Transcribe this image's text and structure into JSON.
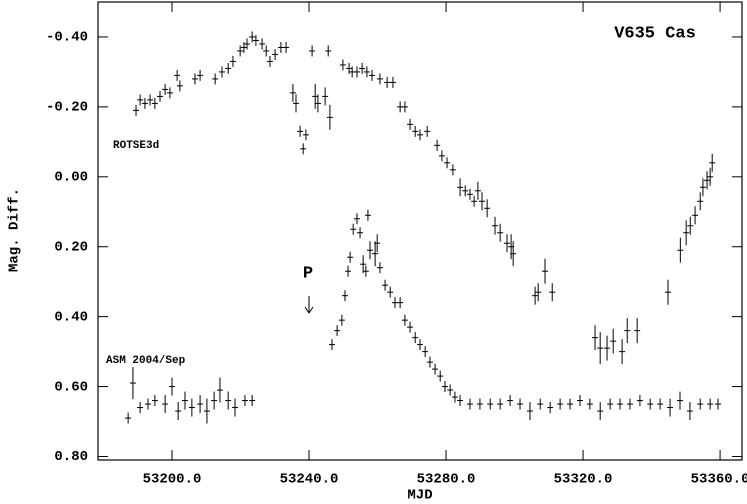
{
  "chart_data": {
    "type": "scatter",
    "title": "V635 Cas",
    "xlabel": "MJD",
    "ylabel": "Mag. Diff.",
    "annotation": "P",
    "xlim": [
      53178.4,
      53366.4
    ],
    "ylim": [
      -0.5,
      0.81
    ],
    "y_inverted": true,
    "xticks": [
      {
        "value": 53200,
        "label": "53200.0"
      },
      {
        "value": 53240,
        "label": "53240.0"
      },
      {
        "value": 53280,
        "label": "53280.0"
      },
      {
        "value": 53320,
        "label": "53320.0"
      },
      {
        "value": 53360,
        "label": "53360.0"
      }
    ],
    "yticks": [
      {
        "value": -0.4,
        "label": "-0.40"
      },
      {
        "value": -0.2,
        "label": "-0.20"
      },
      {
        "value": 0,
        "label": "0.00"
      },
      {
        "value": 0.2,
        "label": "0.20"
      },
      {
        "value": 0.4,
        "label": "0.40"
      },
      {
        "value": 0.6,
        "label": "0.60"
      },
      {
        "value": 0.8,
        "label": "0.80"
      }
    ],
    "grid": false,
    "series": [
      {
        "name": "ROTSE3d",
        "color": "#000000",
        "x": [
          53189.5,
          53190.7,
          53192.1,
          53193.6,
          53195.0,
          53196.5,
          53198.0,
          53199.4,
          53201.5,
          53202.3,
          53206.7,
          53208.2,
          53212.6,
          53214.6,
          53216.4,
          53217.8,
          53219.9,
          53221.0,
          53221.9,
          53223.4,
          53224.5,
          53226.3,
          53227.5,
          53228.6,
          53230.1,
          53231.8,
          53233.3,
          53235.3,
          53236.2,
          53237.4,
          53238.3,
          53239.1,
          53240.9,
          53241.8,
          53242.6,
          53244.7,
          53245.6,
          53246.1,
          53249.9,
          53251.7,
          53252.6,
          53254.0,
          53255.5,
          53256.9,
          53258.4,
          53260.7,
          53262.8,
          53264.5,
          53266.6,
          53268.0,
          53269.5,
          53271.0,
          53272.4,
          53274.5,
          53277.4,
          53278.8,
          53280.3,
          53282.0,
          53284.1,
          53285.6,
          53287.0,
          53288.2,
          53289.3,
          53290.5,
          53292.0,
          53294.3,
          53295.8,
          53297.8,
          53299.0,
          53299.6,
          53306.0,
          53306.9,
          53308.9,
          53311.0,
          53323.5,
          53325.0,
          53327.0,
          53328.8,
          53331.4,
          53332.9,
          53335.8,
          53344.8,
          53348.4,
          53350.1,
          53351.3,
          53352.7,
          53354.2,
          53355.0,
          53356.2,
          53357.1,
          53357.7
        ],
        "values": [
          -0.19,
          -0.22,
          -0.21,
          -0.22,
          -0.21,
          -0.23,
          -0.25,
          -0.24,
          -0.29,
          -0.26,
          -0.28,
          -0.29,
          -0.28,
          -0.3,
          -0.31,
          -0.33,
          -0.36,
          -0.37,
          -0.38,
          -0.4,
          -0.39,
          -0.38,
          -0.36,
          -0.33,
          -0.35,
          -0.37,
          -0.37,
          -0.24,
          -0.21,
          -0.13,
          -0.08,
          -0.12,
          -0.36,
          -0.23,
          -0.21,
          -0.23,
          -0.36,
          -0.17,
          -0.32,
          -0.31,
          -0.3,
          -0.3,
          -0.31,
          -0.3,
          -0.29,
          -0.28,
          -0.27,
          -0.27,
          -0.2,
          -0.2,
          -0.15,
          -0.13,
          -0.12,
          -0.13,
          -0.09,
          -0.06,
          -0.04,
          -0.02,
          0.03,
          0.04,
          0.05,
          0.07,
          0.04,
          0.07,
          0.09,
          0.14,
          0.16,
          0.19,
          0.2,
          0.22,
          0.34,
          0.33,
          0.27,
          0.33,
          0.46,
          0.49,
          0.49,
          0.47,
          0.5,
          0.44,
          0.44,
          0.33,
          0.21,
          0.16,
          0.14,
          0.11,
          0.07,
          0.03,
          0.01,
          0.0,
          -0.04
        ],
        "errors": [
          0.01,
          0.01,
          0.01,
          0.01,
          0.01,
          0.01,
          0.01,
          0.01,
          0.01,
          0.01,
          0.01,
          0.01,
          0.01,
          0.01,
          0.01,
          0.01,
          0.01,
          0.01,
          0.01,
          0.01,
          0.01,
          0.01,
          0.01,
          0.01,
          0.01,
          0.01,
          0.01,
          0.02,
          0.02,
          0.01,
          0.01,
          0.01,
          0.01,
          0.03,
          0.02,
          0.02,
          0.01,
          0.03,
          0.01,
          0.01,
          0.01,
          0.01,
          0.01,
          0.01,
          0.01,
          0.01,
          0.01,
          0.01,
          0.01,
          0.01,
          0.01,
          0.01,
          0.01,
          0.01,
          0.01,
          0.01,
          0.01,
          0.01,
          0.02,
          0.01,
          0.01,
          0.01,
          0.02,
          0.02,
          0.02,
          0.02,
          0.02,
          0.02,
          0.03,
          0.03,
          0.02,
          0.02,
          0.03,
          0.02,
          0.03,
          0.04,
          0.03,
          0.03,
          0.03,
          0.03,
          0.03,
          0.03,
          0.03,
          0.03,
          0.02,
          0.02,
          0.02,
          0.02,
          0.02,
          0.02,
          0.02
        ]
      },
      {
        "name": "ASM 2004/Sep",
        "color": "#000000",
        "x": [
          53187.2,
          53188.6,
          53190.7,
          53193.0,
          53195.0,
          53198.0,
          53200.0,
          53201.8,
          53203.8,
          53205.8,
          53208.2,
          53210.2,
          53212.3,
          53214.0,
          53216.4,
          53218.4,
          53221.3,
          53223.4,
          53246.7,
          53248.2,
          53249.6,
          53250.5,
          53251.4,
          53252.0,
          53252.9,
          53254.0,
          53254.9,
          53255.8,
          53256.6,
          53257.2,
          53257.8,
          53259.3,
          53259.9,
          53260.7,
          53262.2,
          53263.7,
          53265.1,
          53266.6,
          53268.0,
          53269.5,
          53271.0,
          53272.4,
          53273.9,
          53275.3,
          53276.8,
          53278.3,
          53279.7,
          53281.2,
          53282.6,
          53284.1,
          53287.0,
          53289.9,
          53292.9,
          53295.8,
          53298.7,
          53301.6,
          53304.5,
          53307.5,
          53310.4,
          53313.3,
          53316.2,
          53319.1,
          53322.0,
          53325.0,
          53327.9,
          53330.8,
          53333.7,
          53336.6,
          53339.6,
          53342.5,
          53345.4,
          53348.3,
          53351.2,
          53354.2,
          53357.1,
          53359.4
        ],
        "values": [
          0.69,
          0.59,
          0.66,
          0.65,
          0.64,
          0.65,
          0.6,
          0.67,
          0.64,
          0.66,
          0.65,
          0.67,
          0.64,
          0.61,
          0.64,
          0.66,
          0.64,
          0.64,
          0.48,
          0.44,
          0.41,
          0.34,
          0.27,
          0.23,
          0.15,
          0.12,
          0.16,
          0.25,
          0.27,
          0.11,
          0.21,
          0.22,
          0.19,
          0.26,
          0.31,
          0.33,
          0.36,
          0.36,
          0.41,
          0.43,
          0.46,
          0.48,
          0.5,
          0.53,
          0.55,
          0.57,
          0.6,
          0.61,
          0.63,
          0.64,
          0.65,
          0.65,
          0.65,
          0.65,
          0.64,
          0.65,
          0.67,
          0.65,
          0.66,
          0.65,
          0.65,
          0.64,
          0.65,
          0.67,
          0.65,
          0.65,
          0.65,
          0.64,
          0.65,
          0.65,
          0.66,
          0.64,
          0.67,
          0.65,
          0.65,
          0.65
        ],
        "errors": [
          0.01,
          0.04,
          0.01,
          0.01,
          0.01,
          0.02,
          0.02,
          0.02,
          0.02,
          0.02,
          0.02,
          0.03,
          0.02,
          0.03,
          0.02,
          0.02,
          0.01,
          0.01,
          0.01,
          0.01,
          0.01,
          0.01,
          0.01,
          0.01,
          0.01,
          0.01,
          0.01,
          0.02,
          0.01,
          0.01,
          0.02,
          0.03,
          0.02,
          0.01,
          0.01,
          0.01,
          0.01,
          0.01,
          0.01,
          0.01,
          0.01,
          0.01,
          0.01,
          0.01,
          0.01,
          0.01,
          0.01,
          0.01,
          0.01,
          0.01,
          0.01,
          0.01,
          0.01,
          0.01,
          0.01,
          0.01,
          0.02,
          0.01,
          0.01,
          0.01,
          0.01,
          0.01,
          0.01,
          0.02,
          0.01,
          0.01,
          0.01,
          0.01,
          0.01,
          0.01,
          0.02,
          0.02,
          0.02,
          0.01,
          0.01,
          0.01
        ]
      }
    ]
  }
}
